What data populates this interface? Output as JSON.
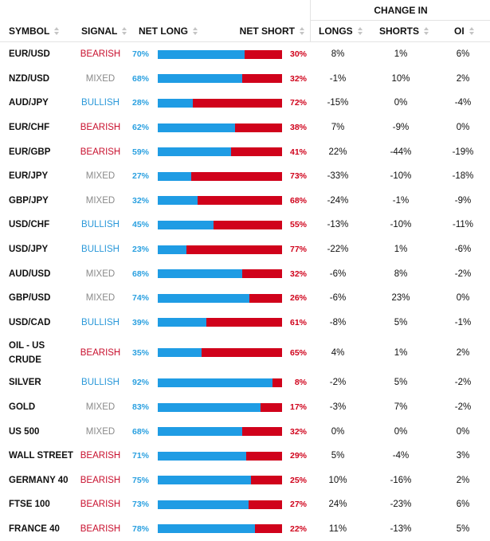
{
  "header": {
    "change_in": "CHANGE IN",
    "symbol": "SYMBOL",
    "signal": "SIGNAL",
    "net_long": "NET LONG",
    "net_short": "NET SHORT",
    "longs": "LONGS",
    "shorts": "SHORTS",
    "oi": "OI"
  },
  "colors": {
    "long_bar": "#1f9ce4",
    "short_bar": "#d0021b",
    "bearish": "#c8102e",
    "bullish": "#2a98d9",
    "mixed": "#8a8a8a"
  },
  "rows": [
    {
      "symbol": "EUR/USD",
      "signal": "BEARISH",
      "net_long": "70%",
      "net_short": "30%",
      "long_fraction": 70,
      "longs": "8%",
      "shorts": "1%",
      "oi": "6%"
    },
    {
      "symbol": "NZD/USD",
      "signal": "MIXED",
      "net_long": "68%",
      "net_short": "32%",
      "long_fraction": 68,
      "longs": "-1%",
      "shorts": "10%",
      "oi": "2%"
    },
    {
      "symbol": "AUD/JPY",
      "signal": "BULLISH",
      "net_long": "28%",
      "net_short": "72%",
      "long_fraction": 28,
      "longs": "-15%",
      "shorts": "0%",
      "oi": "-4%"
    },
    {
      "symbol": "EUR/CHF",
      "signal": "BEARISH",
      "net_long": "62%",
      "net_short": "38%",
      "long_fraction": 62,
      "longs": "7%",
      "shorts": "-9%",
      "oi": "0%"
    },
    {
      "symbol": "EUR/GBP",
      "signal": "BEARISH",
      "net_long": "59%",
      "net_short": "41%",
      "long_fraction": 59,
      "longs": "22%",
      "shorts": "-44%",
      "oi": "-19%"
    },
    {
      "symbol": "EUR/JPY",
      "signal": "MIXED",
      "net_long": "27%",
      "net_short": "73%",
      "long_fraction": 27,
      "longs": "-33%",
      "shorts": "-10%",
      "oi": "-18%"
    },
    {
      "symbol": "GBP/JPY",
      "signal": "MIXED",
      "net_long": "32%",
      "net_short": "68%",
      "long_fraction": 32,
      "longs": "-24%",
      "shorts": "-1%",
      "oi": "-9%"
    },
    {
      "symbol": "USD/CHF",
      "signal": "BULLISH",
      "net_long": "45%",
      "net_short": "55%",
      "long_fraction": 45,
      "longs": "-13%",
      "shorts": "-10%",
      "oi": "-11%"
    },
    {
      "symbol": "USD/JPY",
      "signal": "BULLISH",
      "net_long": "23%",
      "net_short": "77%",
      "long_fraction": 23,
      "longs": "-22%",
      "shorts": "1%",
      "oi": "-6%"
    },
    {
      "symbol": "AUD/USD",
      "signal": "MIXED",
      "net_long": "68%",
      "net_short": "32%",
      "long_fraction": 68,
      "longs": "-6%",
      "shorts": "8%",
      "oi": "-2%"
    },
    {
      "symbol": "GBP/USD",
      "signal": "MIXED",
      "net_long": "74%",
      "net_short": "26%",
      "long_fraction": 74,
      "longs": "-6%",
      "shorts": "23%",
      "oi": "0%"
    },
    {
      "symbol": "USD/CAD",
      "signal": "BULLISH",
      "net_long": "39%",
      "net_short": "61%",
      "long_fraction": 39,
      "longs": "-8%",
      "shorts": "5%",
      "oi": "-1%"
    },
    {
      "symbol": "OIL - US\nCRUDE",
      "signal": "BEARISH",
      "net_long": "35%",
      "net_short": "65%",
      "long_fraction": 35,
      "longs": "4%",
      "shorts": "1%",
      "oi": "2%"
    },
    {
      "symbol": "SILVER",
      "signal": "BULLISH",
      "net_long": "92%",
      "net_short": "8%",
      "long_fraction": 92,
      "longs": "-2%",
      "shorts": "5%",
      "oi": "-2%"
    },
    {
      "symbol": "GOLD",
      "signal": "MIXED",
      "net_long": "83%",
      "net_short": "17%",
      "long_fraction": 83,
      "longs": "-3%",
      "shorts": "7%",
      "oi": "-2%"
    },
    {
      "symbol": "US 500",
      "signal": "MIXED",
      "net_long": "68%",
      "net_short": "32%",
      "long_fraction": 68,
      "longs": "0%",
      "shorts": "0%",
      "oi": "0%"
    },
    {
      "symbol": "WALL STREET",
      "signal": "BEARISH",
      "net_long": "71%",
      "net_short": "29%",
      "long_fraction": 71,
      "longs": "5%",
      "shorts": "-4%",
      "oi": "3%"
    },
    {
      "symbol": "GERMANY 40",
      "signal": "BEARISH",
      "net_long": "75%",
      "net_short": "25%",
      "long_fraction": 75,
      "longs": "10%",
      "shorts": "-16%",
      "oi": "2%"
    },
    {
      "symbol": "FTSE 100",
      "signal": "BEARISH",
      "net_long": "73%",
      "net_short": "27%",
      "long_fraction": 73,
      "longs": "24%",
      "shorts": "-23%",
      "oi": "6%"
    },
    {
      "symbol": "FRANCE 40",
      "signal": "BEARISH",
      "net_long": "78%",
      "net_short": "22%",
      "long_fraction": 78,
      "longs": "11%",
      "shorts": "-13%",
      "oi": "5%"
    }
  ]
}
